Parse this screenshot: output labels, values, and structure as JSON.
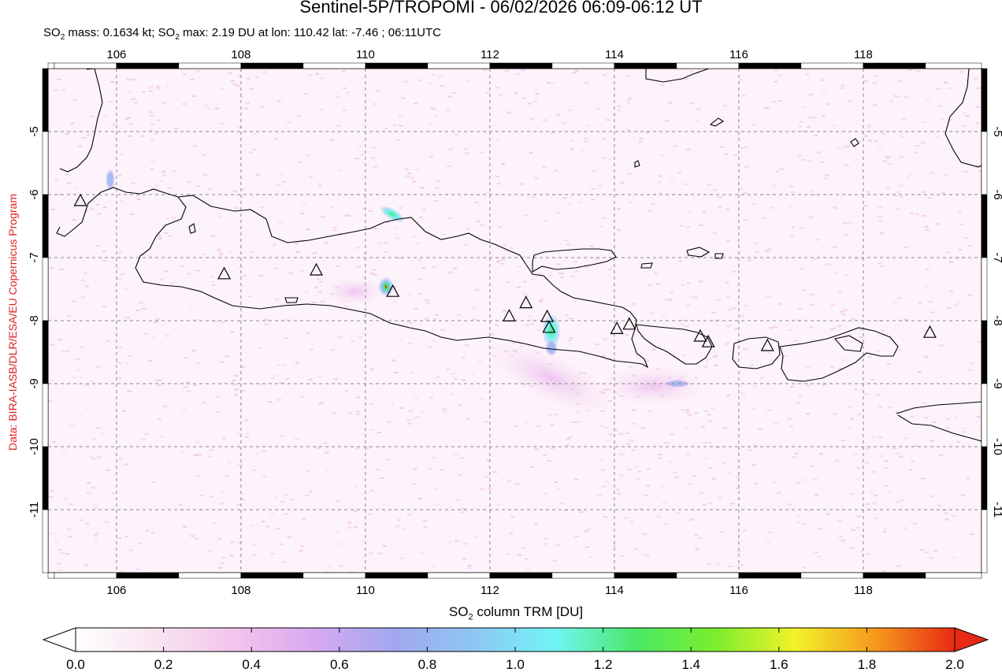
{
  "title": "Sentinel-5P/TROPOMI - 06/02/2026 06:09-06:12 UT",
  "subtitle": {
    "prefix": "SO",
    "sub1": "2",
    "middle": " mass: 0.1634 kt; SO",
    "sub2": "2",
    "suffix": " max: 2.19 DU at lon: 110.42 lat: -7.46 ; 06:11UTC"
  },
  "credit": "Data: BIRA-IASB/DLR/ESA/EU Copernicus Program",
  "map": {
    "lon_range": [
      104.9,
      119.9
    ],
    "lat_range": [
      -12.0,
      -4.0
    ],
    "lon_ticks": [
      "106",
      "108",
      "110",
      "112",
      "114",
      "116",
      "118"
    ],
    "lat_ticks": [
      "-5",
      "-6",
      "-7",
      "-8",
      "-9",
      "-10",
      "-11"
    ],
    "grid": "dashed",
    "volcano_marker": "triangle-icon"
  },
  "colorbar": {
    "label_prefix": "SO",
    "label_sub": "2",
    "label_suffix": " column TRM [DU]",
    "ticks": [
      "0.0",
      "0.2",
      "0.4",
      "0.6",
      "0.8",
      "1.0",
      "1.2",
      "1.4",
      "1.6",
      "1.8",
      "2.0"
    ],
    "colors": [
      "#ffffff",
      "#f8e4f0",
      "#f4c4ec",
      "#d7a8f0",
      "#a0a8ef",
      "#8ec7f3",
      "#70f5f5",
      "#4ae868",
      "#7aee2c",
      "#f2f22a",
      "#f59a1c",
      "#e82a14"
    ]
  },
  "chart_data": {
    "type": "heatmap",
    "title": "Sentinel-5P/TROPOMI - 06/02/2026 06:09-06:12 UT",
    "xlabel": "",
    "ylabel": "",
    "xlim": [
      104.9,
      119.9
    ],
    "ylim": [
      -12.0,
      -4.0
    ],
    "colorbar_range": [
      0.0,
      2.0
    ],
    "colorbar_label": "SO2 column TRM [DU]",
    "volcanoes": [
      {
        "lon": 105.42,
        "lat": -6.1
      },
      {
        "lon": 107.73,
        "lat": -7.26
      },
      {
        "lon": 109.21,
        "lat": -7.2
      },
      {
        "lon": 110.44,
        "lat": -7.54
      },
      {
        "lon": 112.31,
        "lat": -7.93
      },
      {
        "lon": 112.58,
        "lat": -7.72
      },
      {
        "lon": 112.92,
        "lat": -7.94
      },
      {
        "lon": 112.95,
        "lat": -8.11
      },
      {
        "lon": 114.04,
        "lat": -8.13
      },
      {
        "lon": 114.24,
        "lat": -8.06
      },
      {
        "lon": 115.38,
        "lat": -8.25
      },
      {
        "lon": 115.51,
        "lat": -8.34
      },
      {
        "lon": 116.46,
        "lat": -8.4
      },
      {
        "lon": 119.07,
        "lat": -8.19
      }
    ],
    "so2_hotspots": [
      {
        "lon": 110.42,
        "lat": -7.46,
        "du": 2.19
      },
      {
        "lon": 110.6,
        "lat": -6.38,
        "du": 1.5
      },
      {
        "lon": 113.1,
        "lat": -8.05,
        "du": 1.6
      },
      {
        "lon": 113.1,
        "lat": -8.35,
        "du": 1.0
      },
      {
        "lon": 105.95,
        "lat": -5.85,
        "du": 1.1
      },
      {
        "lon": 115.2,
        "lat": -8.98,
        "du": 0.8
      }
    ]
  }
}
